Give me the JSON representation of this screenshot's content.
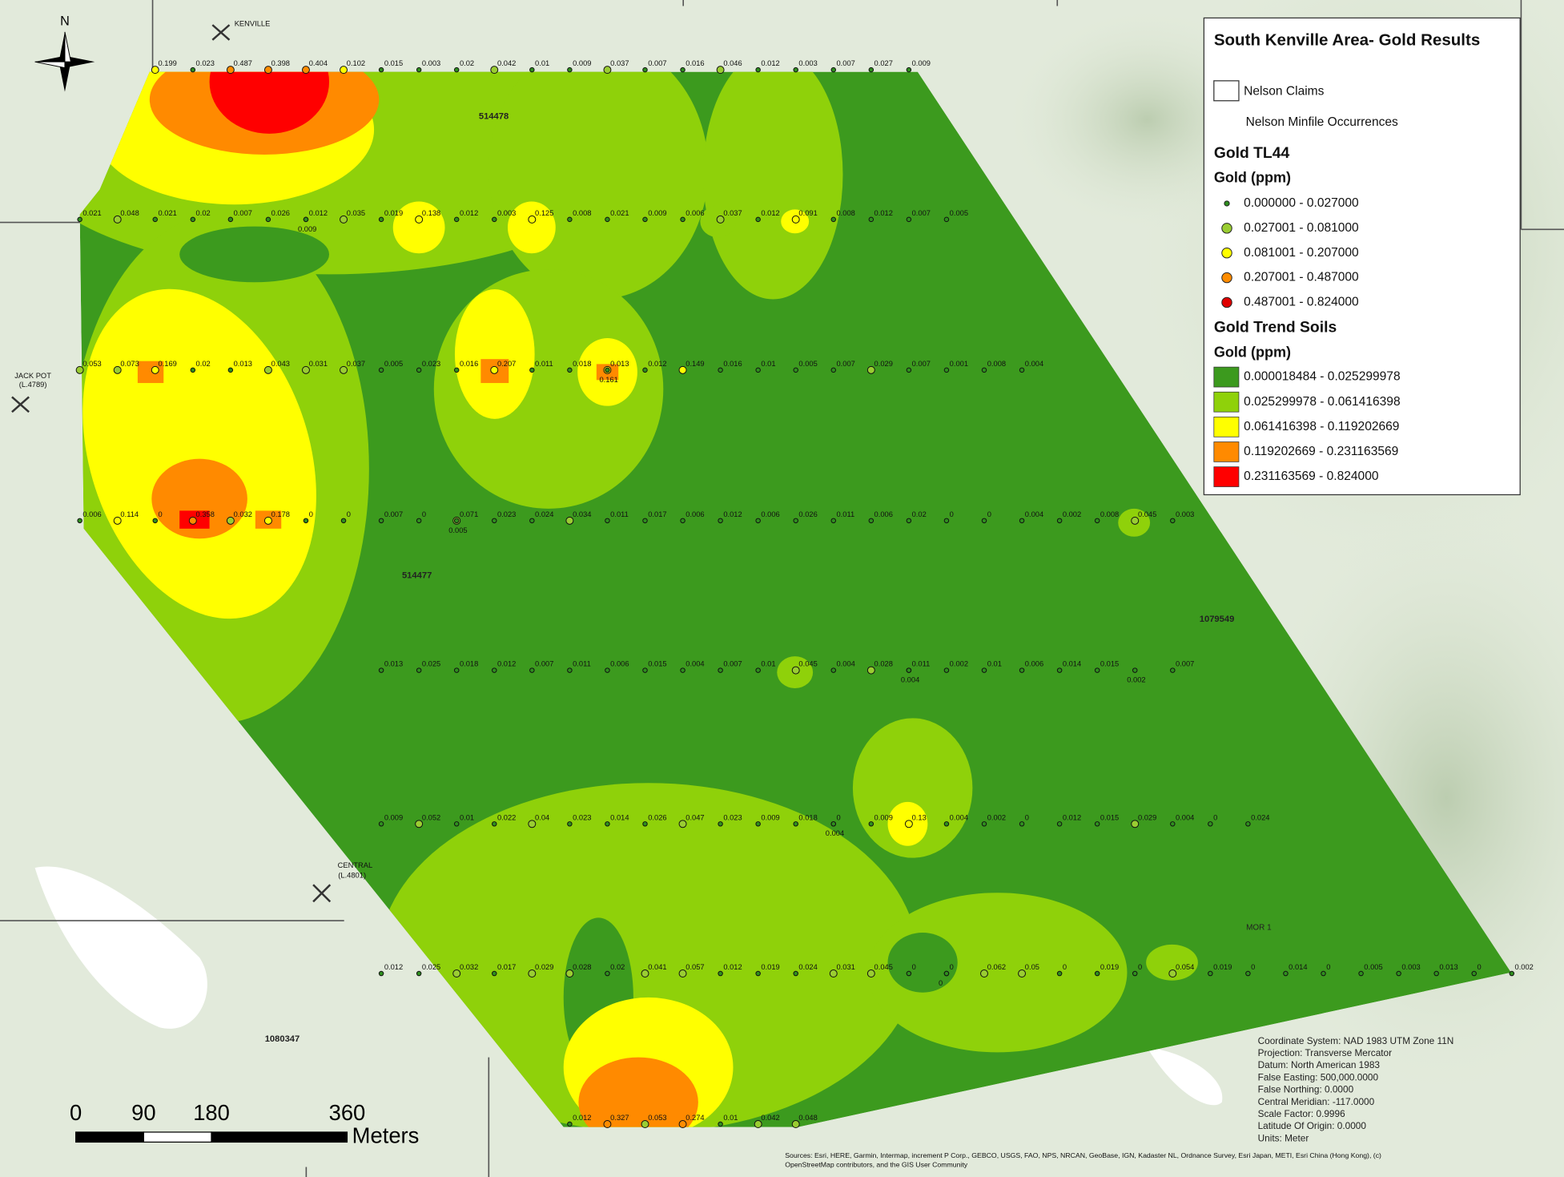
{
  "title": "South Kenville Area- Gold Results",
  "legend": {
    "claims": "Nelson Claims",
    "minfile": "Nelson Minfile Occurrences",
    "tl44": {
      "heading": "Gold TL44",
      "units": "Gold (ppm)",
      "classes": [
        {
          "label": "0.000000 - 0.027000",
          "color": "#2f8f1f"
        },
        {
          "label": "0.027001 - 0.081000",
          "color": "#9acd32"
        },
        {
          "label": "0.081001 - 0.207000",
          "color": "#ffff00"
        },
        {
          "label": "0.207001 - 0.487000",
          "color": "#ff8c00"
        },
        {
          "label": "0.487001 - 0.824000",
          "color": "#e00000"
        }
      ]
    },
    "soils": {
      "heading": "Gold Trend Soils",
      "units": "Gold (ppm)",
      "classes": [
        {
          "label": "0.000018484 - 0.025299978",
          "color": "#3c9a1e"
        },
        {
          "label": "0.025299978 - 0.061416398",
          "color": "#8fd10a"
        },
        {
          "label": "0.061416398 - 0.119202669",
          "color": "#ffff00"
        },
        {
          "label": "0.119202669 - 0.231163569",
          "color": "#ff8a00"
        },
        {
          "label": "0.231163569 - 0.824000",
          "color": "#ff0000"
        }
      ]
    }
  },
  "claims": [
    "514478",
    "514477",
    "1079549",
    "1080347",
    "MOR 1"
  ],
  "places": [
    {
      "name": "KENVILLE"
    },
    {
      "name": "JACK POT",
      "code": "(L.4789)"
    },
    {
      "name": "CENTRAL",
      "code": "(L.4801)"
    }
  ],
  "north": "N",
  "scale": {
    "ticks": [
      0,
      90,
      180,
      360
    ],
    "unit": "Meters"
  },
  "projection": [
    "Coordinate System: NAD 1983 UTM Zone 11N",
    "Projection: Transverse Mercator",
    "Datum: North American 1983",
    "False Easting: 500,000.0000",
    "False Northing: 0.0000",
    "Central Meridian: -117.0000",
    "Scale Factor: 0.9996",
    "Latitude Of Origin: 0.0000",
    "Units: Meter"
  ],
  "sources": [
    "Sources: Esri, HERE, Garmin, Intermap, increment P Corp., GEBCO, USGS, FAO, NPS, NRCAN, GeoBase, IGN, Kadaster NL, Ordnance Survey, Esri Japan, METI, Esri China (Hong Kong), (c)",
    "OpenStreetMap contributors, and the GIS User Community"
  ],
  "sample_lines": [
    [
      0.199,
      0.023,
      0.487,
      0.398,
      0.404,
      0.102,
      0.015,
      0.003,
      0.02,
      0.042,
      0.01,
      0.009,
      0.037,
      0.007,
      0.016,
      0.046,
      0.012,
      0.003,
      0.007,
      0.027,
      0.009
    ],
    [
      0.021,
      0.048,
      0.021,
      0.02,
      0.007,
      0.026,
      0.012,
      0.009,
      0.035,
      0.019,
      0.138,
      0.012,
      0.003,
      0.125,
      0.008,
      0.021,
      0.009,
      0.006,
      0.037,
      0.012,
      0.091,
      0.008,
      0.012,
      0.007,
      0.005
    ],
    [
      0.053,
      0.073,
      0.169,
      0.02,
      0.013,
      0.043,
      0.031,
      0.037,
      0.005,
      0.023,
      0.016,
      0.207,
      0.011,
      0.018,
      0.161,
      0.013,
      0.012,
      0.149,
      0.016,
      0.01,
      0.005,
      0.007,
      0.029,
      0.007,
      0.001,
      0.008,
      0.004
    ],
    [
      0.006,
      0.114,
      0,
      0.358,
      0.032,
      0.178,
      0,
      0,
      0.007,
      0,
      0.071,
      0.005,
      0.023,
      0.024,
      0.034,
      0.011,
      0.017,
      0.006,
      0.012,
      0.006,
      0.026,
      0.011,
      0.006,
      0.02,
      0,
      0,
      0.004,
      0.002,
      0.008,
      0.045,
      0.003
    ],
    [
      0.013,
      0.025,
      0.018,
      0.012,
      0.007,
      0.011,
      0.006,
      0.015,
      0.004,
      0.007,
      0.01,
      0.045,
      0.004,
      0.028,
      0.011,
      0.004,
      0.002,
      0.01,
      0.006,
      0.014,
      0.015,
      0.002,
      0.007
    ],
    [
      0.009,
      0.052,
      0.01,
      0.022,
      0.04,
      0.023,
      0.014,
      0.026,
      0.047,
      0.023,
      0.009,
      0.018,
      0,
      0.004,
      0.009,
      0.13,
      0.004,
      0.002,
      0,
      0.012,
      0.015,
      0.029,
      0.004,
      0,
      0.024
    ],
    [
      0.012,
      0.025,
      0.032,
      0.017,
      0.029,
      0.028,
      0.02,
      0.041,
      0.057,
      0.012,
      0.019,
      0.024,
      0.031,
      0.045,
      0,
      0,
      0,
      0.062,
      0.05,
      0,
      0.019,
      0,
      0.054,
      0.019,
      0,
      0.014,
      0,
      0.005,
      0.003,
      0.013,
      0,
      0.002
    ],
    [
      0.012,
      0.327,
      0.053,
      0.274,
      0.01,
      0.042,
      0.048
    ]
  ]
}
